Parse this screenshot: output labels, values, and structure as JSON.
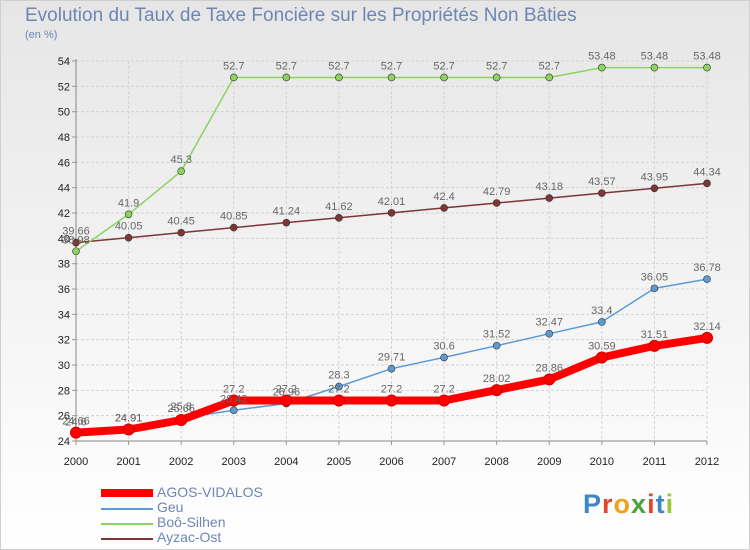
{
  "title": "Evolution du Taux de Taxe Foncière sur les Propriétés Non Bâties",
  "unit_label": "(en %)",
  "logo_text": "Proxiti",
  "chart_data": {
    "type": "line",
    "title": "Evolution du Taux de Taxe Foncière sur les Propriétés Non Bâties",
    "ylabel": "(en %)",
    "xlabel": "",
    "x": [
      "2000",
      "2001",
      "2002",
      "2003",
      "2004",
      "2005",
      "2006",
      "2007",
      "2008",
      "2009",
      "2010",
      "2011",
      "2012"
    ],
    "ylim": [
      24,
      54
    ],
    "yticks": [
      "24",
      "26",
      "28",
      "30",
      "32",
      "34",
      "36",
      "38",
      "40",
      "42",
      "44",
      "46",
      "48",
      "50",
      "52",
      "54"
    ],
    "grid": true,
    "legend_placement": "bottom-left",
    "series": [
      {
        "name": "AGOS-VIDALOS",
        "color": "#ff0000",
        "values": [
          24.66,
          24.91,
          25.66,
          27.2,
          27.2,
          27.2,
          27.2,
          27.2,
          28.02,
          28.86,
          30.59,
          31.51,
          32.14
        ],
        "labels": [
          "24.66",
          "24.91",
          "25.66",
          "27.2",
          "27.2",
          "27.2",
          "27.2",
          "27.2",
          "28.02",
          "28.86",
          "30.59",
          "31.51",
          "32.14"
        ]
      },
      {
        "name": "Geu",
        "color": "#5b9bd5",
        "values": [
          24.6,
          24.91,
          25.8,
          26.42,
          26.96,
          28.3,
          29.71,
          30.6,
          31.52,
          32.47,
          33.4,
          36.05,
          36.78
        ],
        "labels": [
          "24.6",
          "24.91",
          "25.8",
          "26.42",
          "26.96",
          "28.3",
          "29.71",
          "30.6",
          "31.52",
          "32.47",
          "33.4",
          "36.05",
          "36.78"
        ]
      },
      {
        "name": "Boô-Silhen",
        "color": "#8dd35f",
        "values": [
          38.98,
          41.9,
          45.3,
          52.7,
          52.7,
          52.7,
          52.7,
          52.7,
          52.7,
          52.7,
          53.48,
          53.48,
          53.48
        ],
        "labels": [
          "38.98",
          "41.9",
          "45.3",
          "52.7",
          "52.7",
          "52.7",
          "52.7",
          "52.7",
          "52.7",
          "52.7",
          "53.48",
          "53.48",
          "53.48"
        ]
      },
      {
        "name": "Ayzac-Ost",
        "color": "#7f3535",
        "values": [
          39.66,
          40.05,
          40.45,
          40.85,
          41.24,
          41.62,
          42.01,
          42.4,
          42.79,
          43.18,
          43.57,
          43.95,
          44.34
        ],
        "labels": [
          "39.66",
          "40.05",
          "40.45",
          "40.85",
          "41.24",
          "41.62",
          "42.01",
          "42.4",
          "42.79",
          "43.18",
          "43.57",
          "43.95",
          "44.34"
        ]
      }
    ]
  }
}
